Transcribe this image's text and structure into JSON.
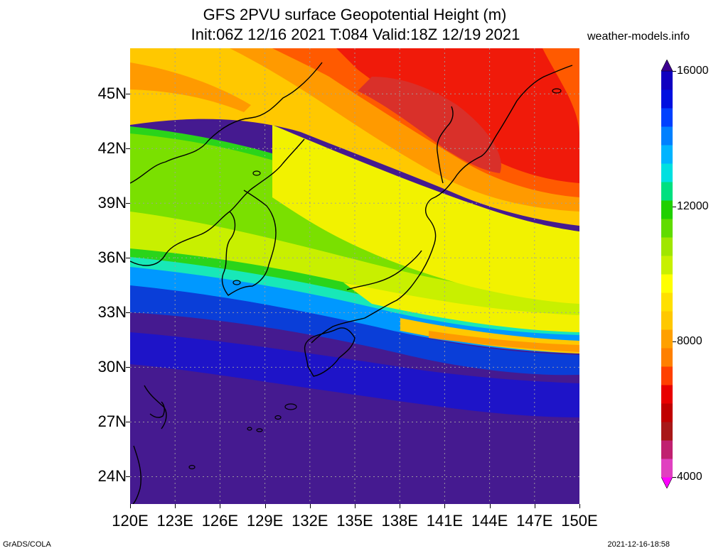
{
  "title": {
    "line1": "GFS 2PVU surface Geopotential Height (m)",
    "line2": "Init:06Z 12/16 2021 T:084 Valid:18Z 12/19 2021"
  },
  "site": "weather-models.info",
  "map": {
    "lon_range": [
      120,
      150
    ],
    "lat_range": [
      22.5,
      47.5
    ],
    "lon_ticks": [
      "120E",
      "123E",
      "126E",
      "129E",
      "132E",
      "135E",
      "138E",
      "141E",
      "144E",
      "147E",
      "150E"
    ],
    "lat_ticks": [
      "24N",
      "27N",
      "30N",
      "33N",
      "36N",
      "39N",
      "42N",
      "45N"
    ],
    "lat_values": [
      24,
      27,
      30,
      33,
      36,
      39,
      42,
      45
    ],
    "lon_values": [
      120,
      123,
      126,
      129,
      132,
      135,
      138,
      141,
      144,
      147,
      150
    ],
    "grid": "dotted",
    "field_colors": [
      "#d9302a",
      "#f01a0a",
      "#ff5a00",
      "#ff9a00",
      "#ffc800",
      "#f2f200",
      "#c8f000",
      "#7ae000",
      "#2ad41a",
      "#18e8b8",
      "#0098ff",
      "#0a3ed8",
      "#1e14c8",
      "#451a90"
    ]
  },
  "colorbar": {
    "labels": [
      "16000",
      "12000",
      "8000",
      "4000"
    ],
    "values": [
      16000,
      12000,
      8000,
      4000
    ],
    "range": [
      4000,
      16000
    ],
    "colors": [
      "#ff00ff",
      "#e040c0",
      "#c02070",
      "#a81818",
      "#c00000",
      "#e80000",
      "#ff4000",
      "#ff8000",
      "#ffa000",
      "#ffc800",
      "#ffe000",
      "#ffff00",
      "#c8f000",
      "#a0e600",
      "#60dc00",
      "#20d000",
      "#00e080",
      "#00e0e0",
      "#00b4ff",
      "#0080ff",
      "#0040ff",
      "#0010e0",
      "#1000c0",
      "#3c0090"
    ]
  },
  "footer": {
    "left": "GrADS/COLA",
    "right": "2021-12-16-18:58"
  }
}
